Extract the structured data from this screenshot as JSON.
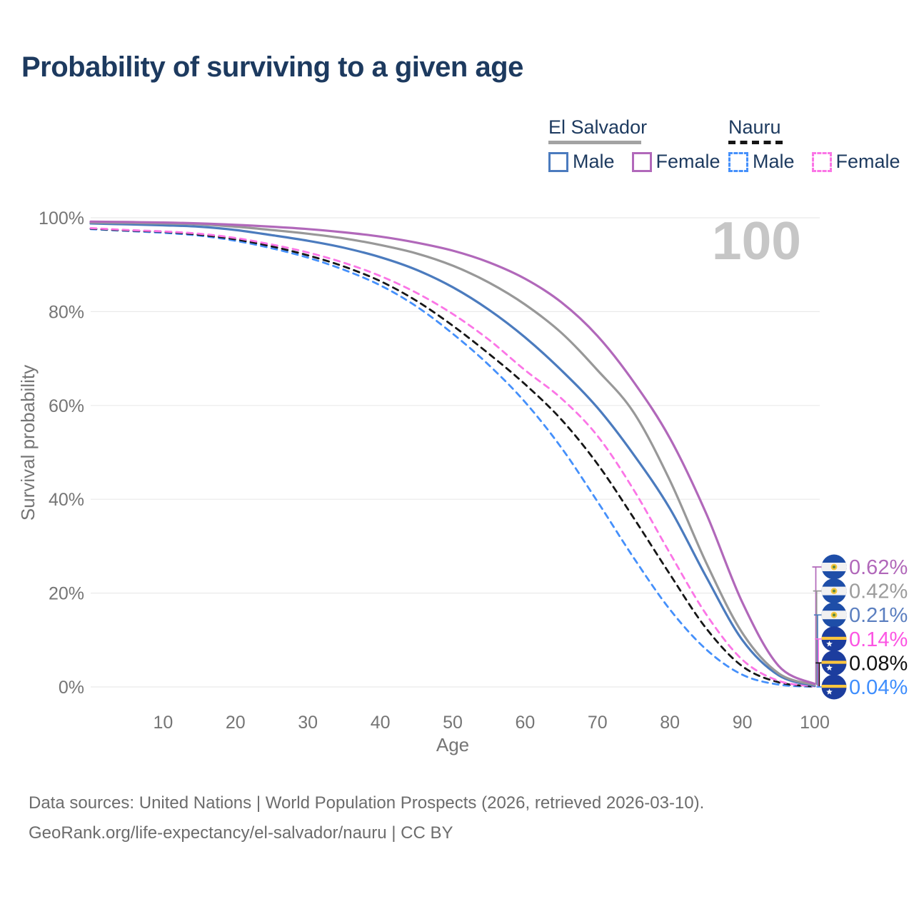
{
  "title": "Probability of surviving to a given age",
  "legend": {
    "groups": [
      {
        "label": "El Salvador",
        "line_style": "solid",
        "underline_color": "#a3a3a3",
        "items": [
          {
            "label": "Male",
            "color": "#4b7bbe"
          },
          {
            "label": "Female",
            "color": "#b168ba"
          }
        ]
      },
      {
        "label": "Nauru",
        "line_style": "dashed",
        "underline_color": "#161616",
        "items": [
          {
            "label": "Male",
            "color": "#4590fb"
          },
          {
            "label": "Female",
            "color": "#fb75e6"
          }
        ]
      }
    ]
  },
  "chart_data": {
    "type": "line",
    "title": "Probability of surviving to a given age",
    "xlabel": "Age",
    "ylabel": "Survival probability",
    "xlim": [
      0,
      100
    ],
    "ylim": [
      0,
      100
    ],
    "x_ticks": [
      10,
      20,
      30,
      40,
      50,
      60,
      70,
      80,
      90,
      100
    ],
    "y_ticks": [
      "0%",
      "20%",
      "40%",
      "60%",
      "80%",
      "100%"
    ],
    "y_tick_values": [
      0,
      20,
      40,
      60,
      80,
      100
    ],
    "grid": "horizontal",
    "legend_position": "top-right",
    "age_counter": "100",
    "x": [
      0,
      5,
      10,
      15,
      20,
      25,
      30,
      35,
      40,
      45,
      50,
      55,
      60,
      65,
      70,
      75,
      80,
      85,
      90,
      95,
      100
    ],
    "series": [
      {
        "name": "El Salvador Female",
        "country": "El Salvador",
        "sex": "Female",
        "color": "#b168ba",
        "dash": false,
        "flag": "sv",
        "end_label": "0.62%",
        "end_label_color": "#b168ba",
        "values": [
          99.2,
          99.1,
          99.0,
          98.8,
          98.5,
          98.1,
          97.6,
          96.9,
          96.0,
          94.7,
          93.0,
          90.5,
          87.0,
          82.0,
          74.8,
          65.0,
          53.0,
          37.0,
          18.0,
          4.5,
          0.62
        ]
      },
      {
        "name": "El Salvador Both sexes",
        "country": "El Salvador",
        "sex": "Both",
        "color": "#989898",
        "dash": false,
        "flag": "sv",
        "end_label": "0.42%",
        "end_label_color": "#9c9c9c",
        "values": [
          99.0,
          98.9,
          98.8,
          98.6,
          98.1,
          97.4,
          96.6,
          95.6,
          94.2,
          92.4,
          89.8,
          86.2,
          81.5,
          75.5,
          67.5,
          58.5,
          44.0,
          26.5,
          11.5,
          2.9,
          0.42
        ]
      },
      {
        "name": "El Salvador Male",
        "country": "El Salvador",
        "sex": "Male",
        "color": "#4b7bbe",
        "dash": false,
        "flag": "sv",
        "end_label": "0.21%",
        "end_label_color": "#5b7fc0",
        "values": [
          98.8,
          98.6,
          98.4,
          98.1,
          97.4,
          96.3,
          95.1,
          93.6,
          91.6,
          88.9,
          85.2,
          80.4,
          74.5,
          67.5,
          59.5,
          49.5,
          38.0,
          23.5,
          10.0,
          2.5,
          0.21
        ]
      },
      {
        "name": "Nauru Female",
        "country": "Nauru",
        "sex": "Female",
        "color": "#fb75e6",
        "dash": true,
        "flag": "nr",
        "end_label": "0.14%",
        "end_label_color": "#fc55e3",
        "values": [
          97.8,
          97.4,
          97.1,
          96.6,
          95.7,
          94.3,
          92.6,
          90.4,
          87.6,
          84.0,
          79.5,
          74.0,
          67.5,
          61.5,
          53.5,
          42.0,
          28.5,
          15.5,
          5.8,
          1.3,
          0.14
        ]
      },
      {
        "name": "Nauru Both sexes",
        "country": "Nauru",
        "sex": "Both",
        "color": "#161616",
        "dash": true,
        "flag": "nr",
        "end_label": "0.08%",
        "end_label_color": "#111111",
        "values": [
          97.7,
          97.3,
          97.0,
          96.4,
          95.4,
          93.9,
          92.0,
          89.6,
          86.5,
          82.3,
          77.0,
          71.0,
          64.5,
          57.0,
          47.5,
          36.0,
          24.0,
          12.5,
          4.4,
          1.0,
          0.08
        ]
      },
      {
        "name": "Nauru Male",
        "country": "Nauru",
        "sex": "Male",
        "color": "#4590fb",
        "dash": true,
        "flag": "nr",
        "end_label": "0.04%",
        "end_label_color": "#3f8efd",
        "values": [
          97.6,
          97.2,
          96.8,
          96.2,
          95.1,
          93.5,
          91.5,
          88.9,
          85.6,
          81.1,
          75.3,
          68.6,
          60.7,
          51.0,
          39.5,
          27.5,
          16.5,
          8.0,
          2.6,
          0.5,
          0.04
        ]
      }
    ]
  },
  "source": {
    "line1": "Data sources: United Nations | World Population Prospects (2026, retrieved 2026-03-10).",
    "line2": "GeoRank.org/life-expectancy/el-salvador/nauru | CC BY"
  }
}
